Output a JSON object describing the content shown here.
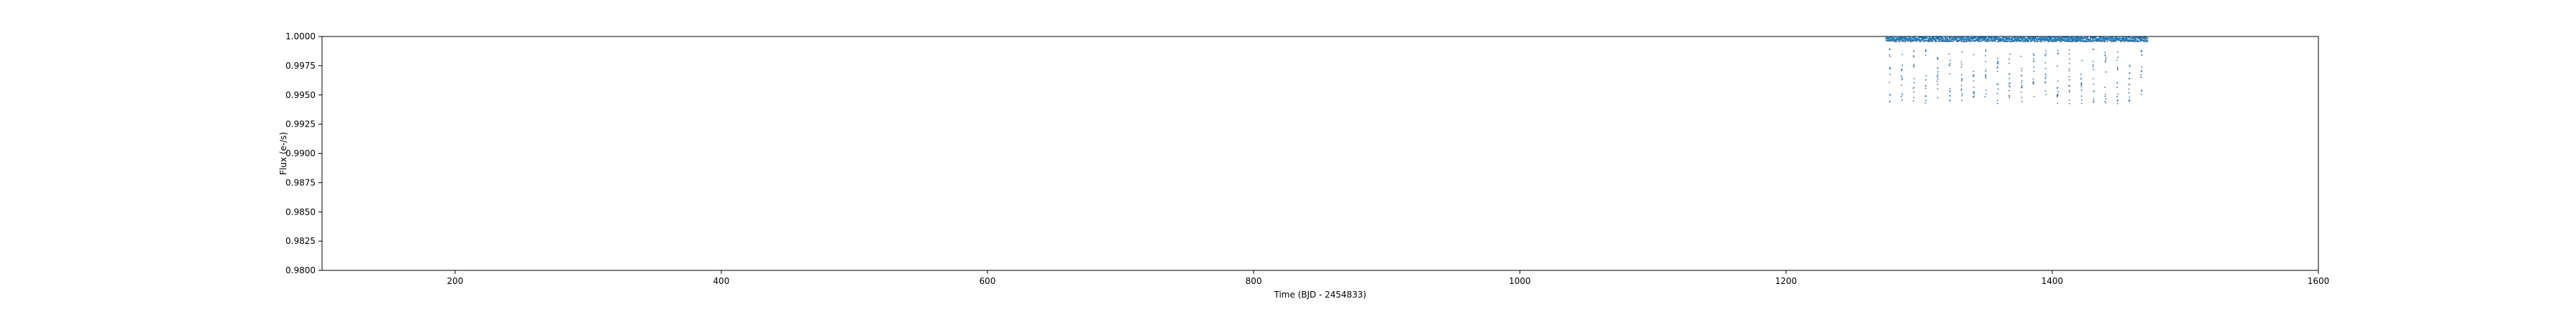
{
  "chart_data": {
    "type": "scatter",
    "title": "",
    "xlabel": "Time (BJD - 2454833)",
    "ylabel": "Flux (e-/s)",
    "xlim": [
      100,
      1600
    ],
    "ylim": [
      0.98,
      1.0
    ],
    "xticks": [
      200,
      400,
      600,
      800,
      1000,
      1200,
      1400,
      1600
    ],
    "yticks": [
      0.98,
      0.9825,
      0.985,
      0.9875,
      0.99,
      0.9925,
      0.995,
      0.9975,
      1.0
    ],
    "ytick_labels": [
      "0.9800",
      "0.9825",
      "0.9850",
      "0.9875",
      "0.9900",
      "0.9925",
      "0.9950",
      "0.9975",
      "1.0000"
    ],
    "grid": false,
    "series": [
      {
        "color": "#1f77b4",
        "x_start": 1275,
        "x_end": 1472,
        "baseline": 0.99975,
        "scatter": 0.0002,
        "transit_times": [
          1278,
          1287,
          1296,
          1305,
          1314,
          1323,
          1332,
          1341,
          1350,
          1359,
          1368,
          1377,
          1386,
          1395,
          1404,
          1413,
          1422,
          1431,
          1440,
          1449,
          1458,
          1467
        ],
        "transit_depth": 0.0055
      }
    ]
  }
}
